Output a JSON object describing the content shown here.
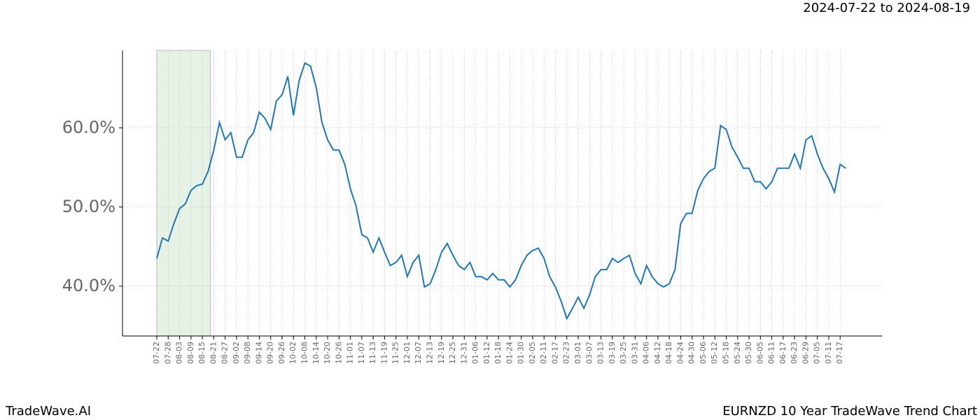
{
  "chart_data": {
    "type": "line",
    "title": "EURNZD 10 Year TradeWave Trend Chart",
    "date_range": "2024-07-22 to 2024-08-19",
    "brand": "TradeWave.AI",
    "categories": [
      "07-22",
      null,
      "07-28",
      null,
      "08-03",
      null,
      "08-09",
      null,
      "08-15",
      null,
      "08-21",
      null,
      "08-27",
      null,
      "09-02",
      null,
      "09-08",
      null,
      "09-14",
      null,
      "09-20",
      null,
      "09-26",
      null,
      "10-02",
      null,
      "10-08",
      null,
      "10-14",
      null,
      "10-20",
      null,
      "10-26",
      null,
      "11-01",
      null,
      "11-07",
      null,
      "11-13",
      null,
      "11-19",
      null,
      "11-25",
      null,
      "12-01",
      null,
      "12-07",
      null,
      "12-13",
      null,
      "12-19",
      null,
      "12-25",
      null,
      "12-31",
      null,
      "01-06",
      null,
      "01-12",
      null,
      "01-18",
      null,
      "01-24",
      null,
      "01-30",
      null,
      "02-05",
      null,
      "02-11",
      null,
      "02-17",
      null,
      "02-23",
      null,
      "03-01",
      null,
      "03-07",
      null,
      "03-13",
      null,
      "03-19",
      null,
      "03-25",
      null,
      "03-31",
      null,
      "04-06",
      null,
      "04-12",
      null,
      "04-18",
      null,
      "04-24",
      null,
      "04-30",
      null,
      "05-06",
      null,
      "05-12",
      null,
      "05-18",
      null,
      "05-24",
      null,
      "05-30",
      null,
      "06-05",
      null,
      "06-11",
      null,
      "06-17",
      null,
      "06-23",
      null,
      "06-29",
      null,
      "07-05",
      null,
      "07-11",
      null,
      "07-17",
      null
    ],
    "series": [
      {
        "color": "#1f77b4",
        "values": [
          43.5,
          46.1,
          45.7,
          47.9,
          49.8,
          50.4,
          52.1,
          52.7,
          52.9,
          54.5,
          57.2,
          60.7,
          58.5,
          59.4,
          56.3,
          56.3,
          58.5,
          59.4,
          62.0,
          61.2,
          59.8,
          63.4,
          64.2,
          66.5,
          61.6,
          66.0,
          68.2,
          67.8,
          65.1,
          60.7,
          58.5,
          57.2,
          57.2,
          55.4,
          52.3,
          50.1,
          46.5,
          46.1,
          44.3,
          46.1,
          44.3,
          42.6,
          43.0,
          43.9,
          41.2,
          43.0,
          43.9,
          39.9,
          40.3,
          42.1,
          44.3,
          45.4,
          43.9,
          42.6,
          42.1,
          43.0,
          41.2,
          41.2,
          40.8,
          41.6,
          40.8,
          40.8,
          39.9,
          40.8,
          42.6,
          43.9,
          44.5,
          44.8,
          43.5,
          41.2,
          39.9,
          38.1,
          35.9,
          37.2,
          38.6,
          37.2,
          38.9,
          41.2,
          42.1,
          42.1,
          43.5,
          43.0,
          43.5,
          43.9,
          41.6,
          40.3,
          42.6,
          41.2,
          40.3,
          39.9,
          40.3,
          42.1,
          47.9,
          49.2,
          49.2,
          52.1,
          53.6,
          54.5,
          54.9,
          60.3,
          59.8,
          57.6,
          56.3,
          54.9,
          54.9,
          53.2,
          53.2,
          52.3,
          53.2,
          54.9,
          54.9,
          54.9,
          56.7,
          54.9,
          58.5,
          59.0,
          56.7,
          54.9,
          53.6,
          51.9,
          55.4,
          54.9
        ]
      }
    ],
    "ylim": [
      33.7,
      69.8
    ],
    "yticks": [
      {
        "value": 40,
        "label": "40.0%"
      },
      {
        "value": 50,
        "label": "50.0%"
      },
      {
        "value": 60,
        "label": "60.0%"
      }
    ],
    "grid": true,
    "highlight_color": "#e6f2e6"
  }
}
